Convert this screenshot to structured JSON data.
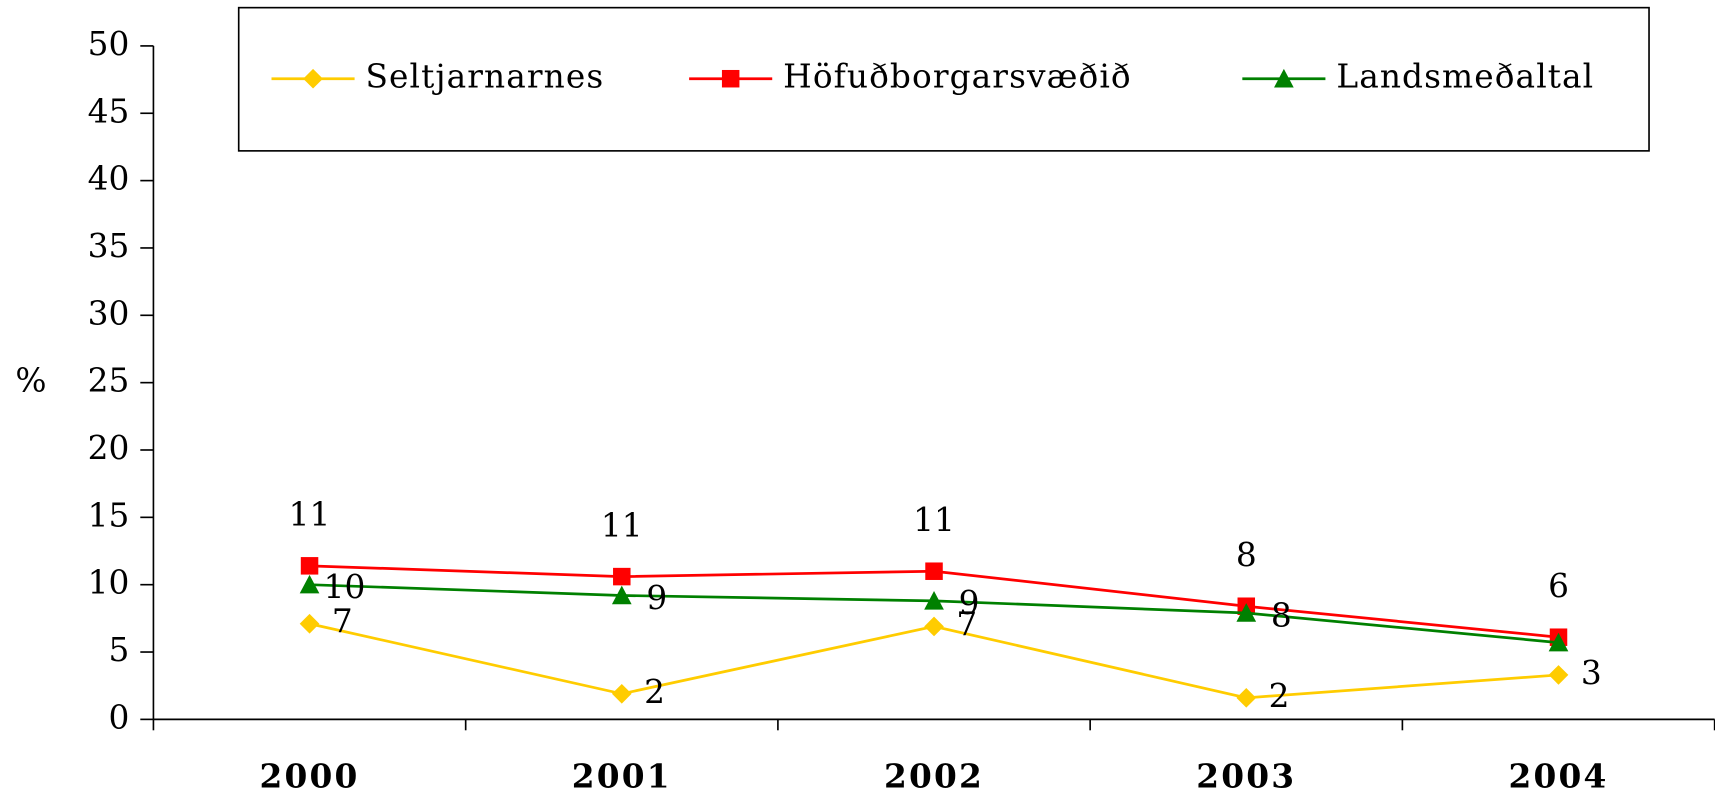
{
  "chart_data": {
    "type": "line",
    "ylabel": "%",
    "categories": [
      "2000",
      "2001",
      "2002",
      "2003",
      "2004"
    ],
    "ylim": [
      0,
      50
    ],
    "yticks": [
      0,
      5,
      10,
      15,
      20,
      25,
      30,
      35,
      40,
      45,
      50
    ],
    "legend": "top",
    "series": [
      {
        "name": "Seltjarnarnes",
        "color": "#ffcc00",
        "marker": "diamond",
        "values": [
          7.1,
          1.9,
          6.9,
          1.6,
          3.3
        ],
        "value_labels": [
          "7",
          "2",
          "7",
          "2",
          "3"
        ]
      },
      {
        "name": "Höfuðborgarsvæðið",
        "color": "#ff0000",
        "marker": "square",
        "values": [
          11.4,
          10.6,
          11.0,
          8.4,
          6.1
        ],
        "value_labels": [
          "11",
          "11",
          "11",
          "8",
          "6"
        ]
      },
      {
        "name": "Landsmeðaltal",
        "color": "#008000",
        "marker": "triangle",
        "values": [
          10.0,
          9.2,
          8.8,
          7.9,
          5.7
        ],
        "value_labels": [
          "10",
          "9",
          "9",
          "8",
          null
        ]
      }
    ]
  }
}
